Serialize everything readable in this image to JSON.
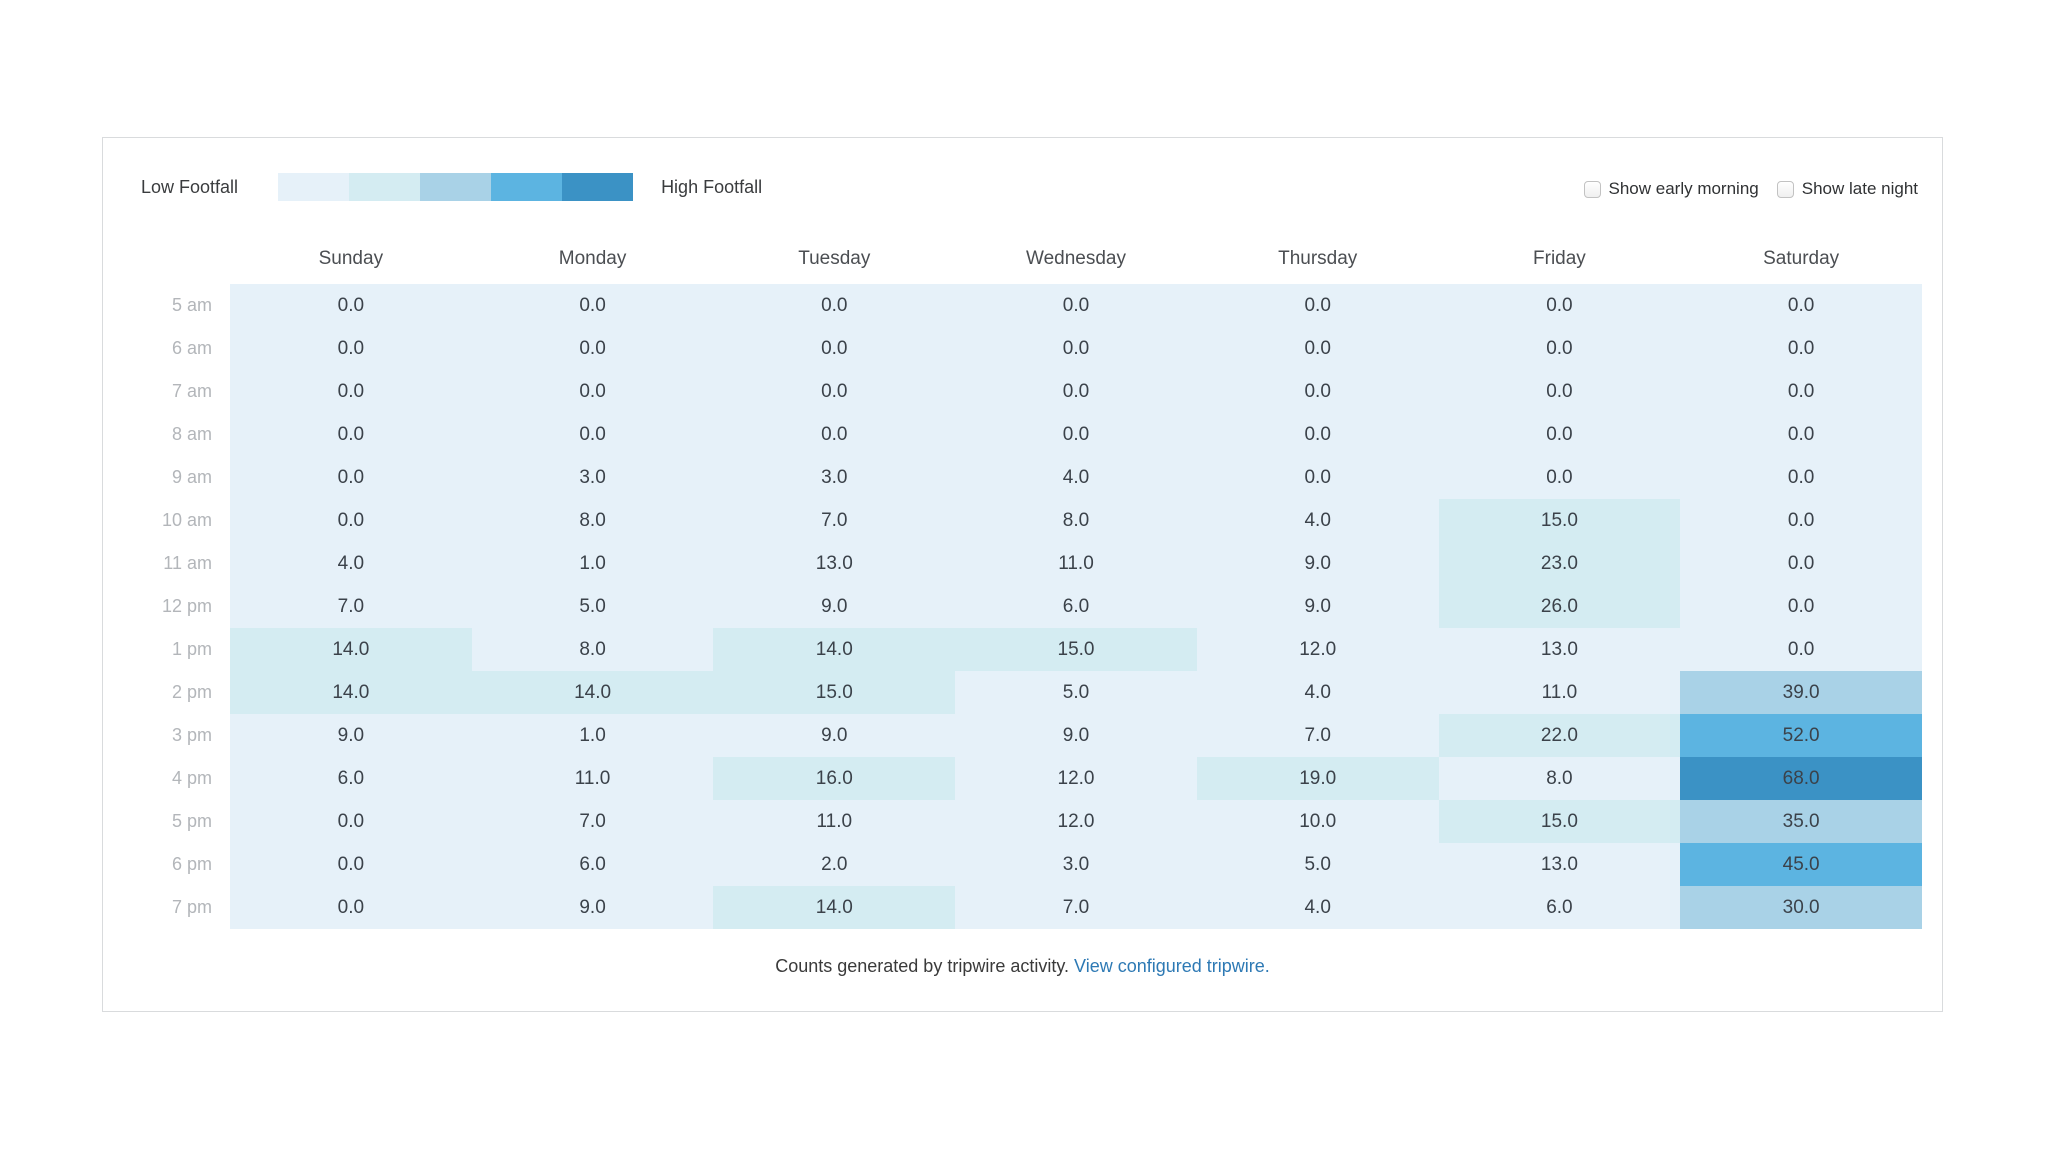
{
  "legend": {
    "low_label": "Low Footfall",
    "high_label": "High Footfall"
  },
  "controls": {
    "early_morning": {
      "label": "Show early morning",
      "checked": false
    },
    "late_night": {
      "label": "Show late night",
      "checked": false
    }
  },
  "footer": {
    "text": "Counts generated by tripwire activity.",
    "link_label": "View configured tripwire."
  },
  "colors": {
    "palette": [
      "#e6f1f9",
      "#d4ecf2",
      "#a9d2e7",
      "#5cb4e1",
      "#3b92c5"
    ],
    "cell_text": "#3b424a",
    "hour_label": "#b3b6ba",
    "day_header": "#4b4e52",
    "footer_text": "#3a3a3a",
    "link": "#2d79b4",
    "card_border": "#d9dbdd"
  },
  "chart_data": {
    "type": "heatmap",
    "columns": [
      "Sunday",
      "Monday",
      "Tuesday",
      "Wednesday",
      "Thursday",
      "Friday",
      "Saturday"
    ],
    "rows": [
      "5 am",
      "6 am",
      "7 am",
      "8 am",
      "9 am",
      "10 am",
      "11 am",
      "12 pm",
      "1 pm",
      "2 pm",
      "3 pm",
      "4 pm",
      "5 pm",
      "6 pm",
      "7 pm"
    ],
    "values": [
      [
        0,
        0,
        0,
        0,
        0,
        0,
        0
      ],
      [
        0,
        0,
        0,
        0,
        0,
        0,
        0
      ],
      [
        0,
        0,
        0,
        0,
        0,
        0,
        0
      ],
      [
        0,
        0,
        0,
        0,
        0,
        0,
        0
      ],
      [
        0,
        3,
        3,
        4,
        0,
        0,
        0
      ],
      [
        0,
        8,
        7,
        8,
        4,
        15,
        0
      ],
      [
        4,
        1,
        13,
        11,
        9,
        23,
        0
      ],
      [
        7,
        5,
        9,
        6,
        9,
        26,
        0
      ],
      [
        14,
        8,
        14,
        15,
        12,
        13,
        0
      ],
      [
        14,
        14,
        15,
        5,
        4,
        11,
        39
      ],
      [
        9,
        1,
        9,
        9,
        7,
        22,
        52
      ],
      [
        6,
        11,
        16,
        12,
        19,
        8,
        68
      ],
      [
        0,
        7,
        11,
        12,
        10,
        15,
        35
      ],
      [
        0,
        6,
        2,
        3,
        5,
        13,
        45
      ],
      [
        0,
        9,
        14,
        7,
        4,
        6,
        30
      ]
    ],
    "value_decimals": 1,
    "color_scale": {
      "min": 0,
      "max": 68,
      "bins": 5
    },
    "legend_position": "top-left",
    "grid": false
  }
}
